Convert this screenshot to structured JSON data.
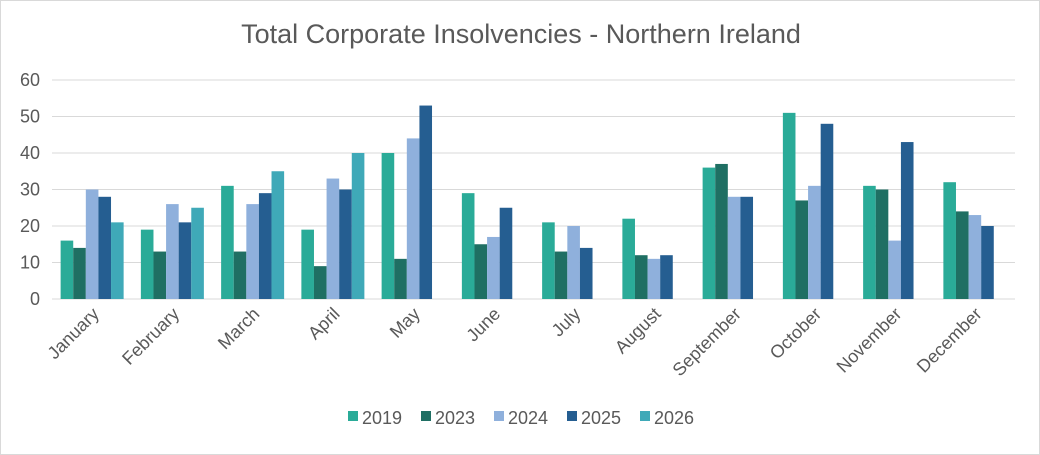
{
  "chart_data": {
    "type": "bar",
    "title": "Total Corporate Insolvencies - Northern Ireland",
    "xlabel": "",
    "ylabel": "",
    "ylim": [
      0,
      60
    ],
    "yticks": [
      0,
      10,
      20,
      30,
      40,
      50,
      60
    ],
    "grid": true,
    "legend_position": "bottom",
    "categories": [
      "January",
      "February",
      "March",
      "April",
      "May",
      "June",
      "July",
      "August",
      "September",
      "October",
      "November",
      "December"
    ],
    "series": [
      {
        "name": "2019",
        "color": "#2aab98",
        "values": [
          16,
          19,
          31,
          19,
          40,
          29,
          21,
          22,
          36,
          51,
          31,
          32
        ]
      },
      {
        "name": "2023",
        "color": "#1f6f63",
        "values": [
          14,
          13,
          13,
          9,
          11,
          15,
          13,
          12,
          37,
          27,
          30,
          24
        ]
      },
      {
        "name": "2024",
        "color": "#8fb0dc",
        "values": [
          30,
          26,
          26,
          33,
          44,
          17,
          20,
          11,
          28,
          31,
          16,
          23
        ]
      },
      {
        "name": "2025",
        "color": "#255e91",
        "values": [
          28,
          21,
          29,
          30,
          53,
          25,
          14,
          12,
          28,
          48,
          43,
          20
        ]
      },
      {
        "name": "2026",
        "color": "#3fa9b8",
        "values": [
          21,
          25,
          35,
          40,
          null,
          null,
          null,
          null,
          null,
          null,
          null,
          null
        ]
      }
    ]
  }
}
